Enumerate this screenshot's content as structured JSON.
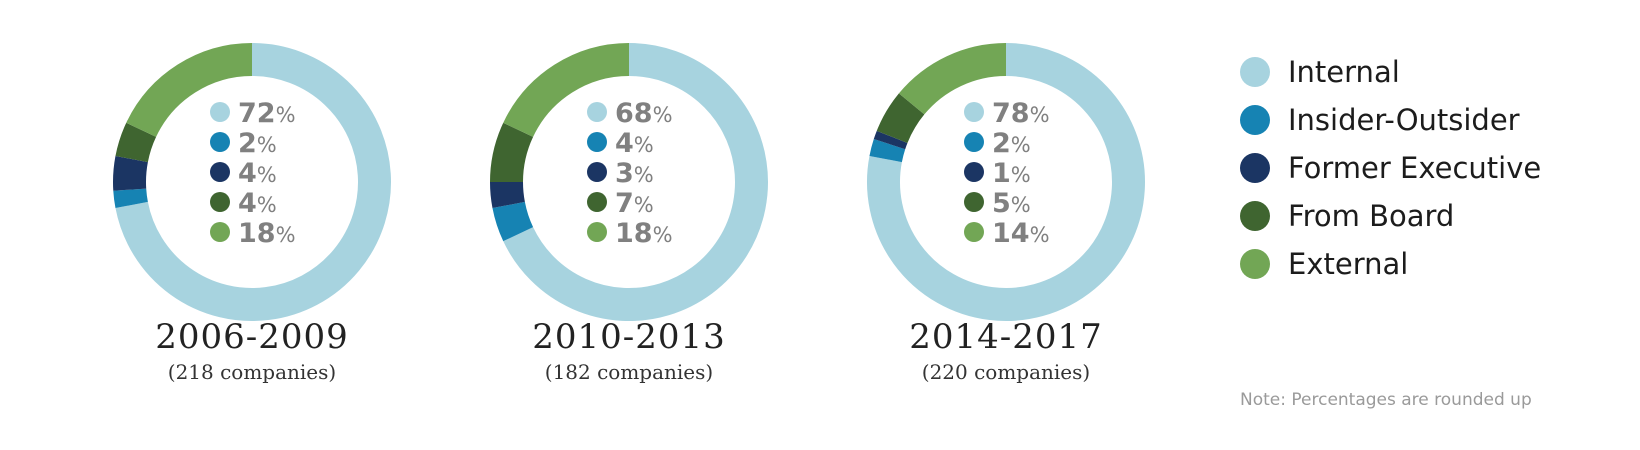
{
  "chart_data": [
    {
      "type": "pie",
      "title": "2006-2009",
      "subtitle": "(218 companies)",
      "categories": [
        "Internal",
        "Insider-Outsider",
        "Former Executive",
        "From Board",
        "External"
      ],
      "values": [
        72,
        2,
        4,
        4,
        18
      ],
      "value_labels": [
        "72%",
        "2%",
        "4%",
        "4%",
        "18%"
      ]
    },
    {
      "type": "pie",
      "title": "2010-2013",
      "subtitle": "(182 companies)",
      "categories": [
        "Internal",
        "Insider-Outsider",
        "Former Executive",
        "From Board",
        "External"
      ],
      "values": [
        68,
        4,
        3,
        7,
        18
      ],
      "value_labels": [
        "68%",
        "4%",
        "3%",
        "7%",
        "18%"
      ]
    },
    {
      "type": "pie",
      "title": "2014-2017",
      "subtitle": "(220 companies)",
      "categories": [
        "Internal",
        "Insider-Outsider",
        "Former Executive",
        "From Board",
        "External"
      ],
      "values": [
        78,
        2,
        1,
        5,
        14
      ],
      "value_labels": [
        "78%",
        "2%",
        "1%",
        "5%",
        "14%"
      ]
    }
  ],
  "legend": {
    "items": [
      {
        "label": "Internal",
        "color": "#a7d3df"
      },
      {
        "label": "Insider-Outsider",
        "color": "#1683b3"
      },
      {
        "label": "Former Executive",
        "color": "#1b3563"
      },
      {
        "label": "From Board",
        "color": "#3f6530"
      },
      {
        "label": "External",
        "color": "#72a655"
      }
    ]
  },
  "note": "Note: Percentages are rounded up"
}
